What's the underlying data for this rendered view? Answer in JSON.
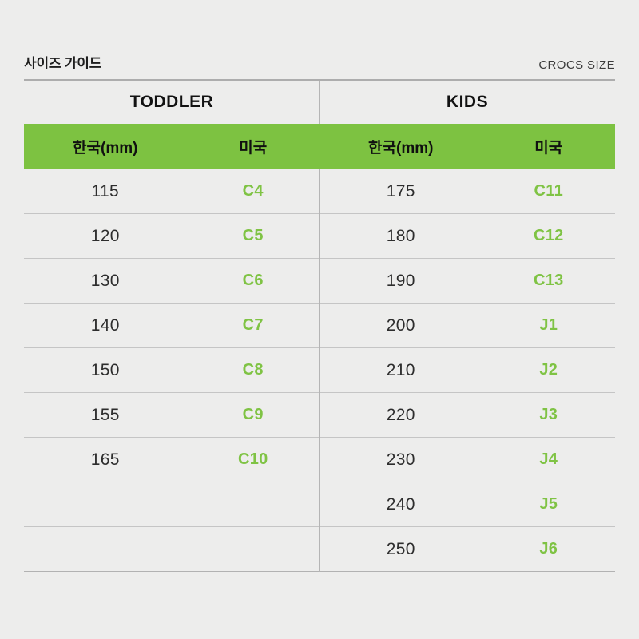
{
  "header": {
    "title": "사이즈 가이드",
    "brand": "CROCS SIZE"
  },
  "table": {
    "sections": [
      {
        "name": "TODDLER",
        "columns": {
          "korea": "한국(mm)",
          "us": "미국"
        },
        "rows": [
          {
            "korea": "115",
            "us": "C4"
          },
          {
            "korea": "120",
            "us": "C5"
          },
          {
            "korea": "130",
            "us": "C6"
          },
          {
            "korea": "140",
            "us": "C7"
          },
          {
            "korea": "150",
            "us": "C8"
          },
          {
            "korea": "155",
            "us": "C9"
          },
          {
            "korea": "165",
            "us": "C10"
          },
          {
            "korea": "",
            "us": ""
          },
          {
            "korea": "",
            "us": ""
          }
        ]
      },
      {
        "name": "KIDS",
        "columns": {
          "korea": "한국(mm)",
          "us": "미국"
        },
        "rows": [
          {
            "korea": "175",
            "us": "C11"
          },
          {
            "korea": "180",
            "us": "C12"
          },
          {
            "korea": "190",
            "us": "C13"
          },
          {
            "korea": "200",
            "us": "J1"
          },
          {
            "korea": "210",
            "us": "J2"
          },
          {
            "korea": "220",
            "us": "J3"
          },
          {
            "korea": "230",
            "us": "J4"
          },
          {
            "korea": "240",
            "us": "J5"
          },
          {
            "korea": "250",
            "us": "J6"
          }
        ]
      }
    ]
  },
  "colors": {
    "accent_green": "#7dc241",
    "size_text_green": "#7fc344",
    "background": "#ededec"
  }
}
